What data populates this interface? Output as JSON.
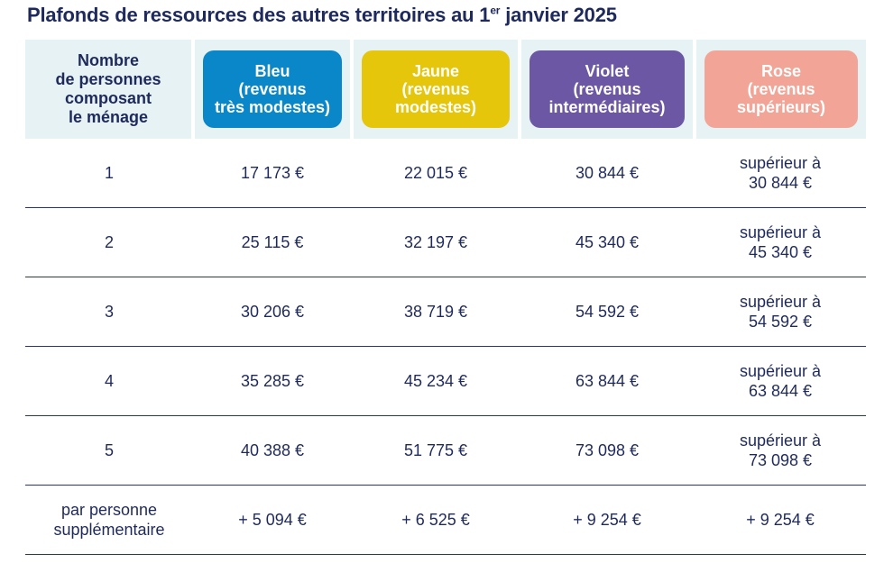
{
  "title": {
    "main": "Plafonds de ressources des autres territoires au 1",
    "sup": "er",
    "end": " janvier 2025"
  },
  "table": {
    "header_first": "Nombre\nde personnes\ncomposant\nle ménage",
    "categories": [
      {
        "label": "Bleu\n(revenus\ntrès modestes)",
        "color": "#0a87c8"
      },
      {
        "label": "Jaune\n(revenus\nmodestes)",
        "color": "#e6c60a"
      },
      {
        "label": "Violet\n(revenus\nintermédiaires)",
        "color": "#6b57a3"
      },
      {
        "label": "Rose\n(revenus\nsupérieurs)",
        "color": "#f2a596"
      }
    ],
    "rows": [
      {
        "persons": "1",
        "bleu": "17 173 €",
        "jaune": "22 015 €",
        "violet": "30 844 €",
        "rose": "supérieur à\n30 844 €"
      },
      {
        "persons": "2",
        "bleu": "25 115 €",
        "jaune": "32 197 €",
        "violet": "45 340 €",
        "rose": "supérieur à\n45 340 €"
      },
      {
        "persons": "3",
        "bleu": "30 206 €",
        "jaune": "38 719 €",
        "violet": "54 592 €",
        "rose": "supérieur à\n54 592 €"
      },
      {
        "persons": "4",
        "bleu": "35 285 €",
        "jaune": "45 234 €",
        "violet": "63 844 €",
        "rose": "supérieur à\n63 844 €"
      },
      {
        "persons": "5",
        "bleu": "40 388 €",
        "jaune": "51 775 €",
        "violet": "73 098 €",
        "rose": "supérieur à\n73 098 €"
      },
      {
        "persons": "par personne\nsupplémentaire",
        "bleu": "+ 5 094 €",
        "jaune": "+ 6 525 €",
        "violet": "+ 9 254 €",
        "rose": "+ 9 254 €"
      }
    ]
  }
}
